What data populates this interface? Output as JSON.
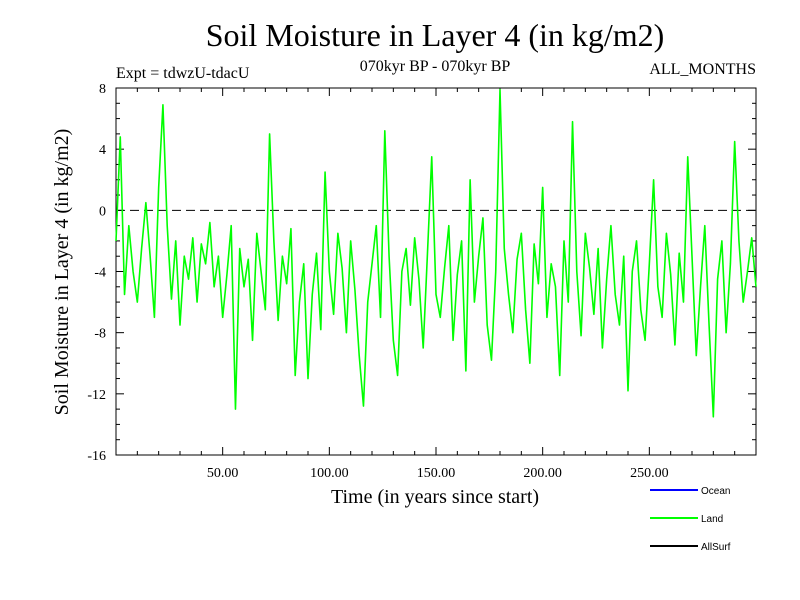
{
  "header": {
    "title": "Soil Moisture in Layer 4 (in kg/m2)",
    "experiment": "Expt = tdwzU-tdacU",
    "period": "070kyr BP - 070kyr BP",
    "months": "ALL_MONTHS"
  },
  "chart_data": {
    "type": "line",
    "xlabel": "Time (in years since start)",
    "ylabel": "Soil Moisture in Layer 4 (in kg/m2)",
    "xlim": [
      0,
      300
    ],
    "ylim": [
      -16,
      8
    ],
    "xticks": [
      50,
      100,
      150,
      200,
      250
    ],
    "xtick_labels": [
      "50.00",
      "100.00",
      "150.00",
      "200.00",
      "250.00"
    ],
    "yticks": [
      -16,
      -12,
      -8,
      -4,
      0,
      4,
      8
    ],
    "ytick_labels": [
      "-16",
      "-12",
      "-8",
      "-4",
      "0",
      "4",
      "8"
    ],
    "zero_line": true,
    "grid": false,
    "legend_position": "bottom-right",
    "series": [
      {
        "name": "Ocean",
        "color": "#0000ff",
        "x": [],
        "y": []
      },
      {
        "name": "Land",
        "color": "#00ff00",
        "x": [
          0,
          2,
          4,
          6,
          8,
          10,
          12,
          14,
          16,
          18,
          20,
          22,
          24,
          26,
          28,
          30,
          32,
          34,
          36,
          38,
          40,
          42,
          44,
          46,
          48,
          50,
          52,
          54,
          56,
          58,
          60,
          62,
          64,
          66,
          68,
          70,
          72,
          74,
          76,
          78,
          80,
          82,
          84,
          86,
          88,
          90,
          92,
          94,
          96,
          98,
          100,
          102,
          104,
          106,
          108,
          110,
          112,
          114,
          116,
          118,
          120,
          122,
          124,
          126,
          128,
          130,
          132,
          134,
          136,
          138,
          140,
          142,
          144,
          146,
          148,
          150,
          152,
          154,
          156,
          158,
          160,
          162,
          164,
          166,
          168,
          170,
          172,
          174,
          176,
          178,
          180,
          182,
          184,
          186,
          188,
          190,
          192,
          194,
          196,
          198,
          200,
          202,
          204,
          206,
          208,
          210,
          212,
          214,
          216,
          218,
          220,
          222,
          224,
          226,
          228,
          230,
          232,
          234,
          236,
          238,
          240,
          242,
          244,
          246,
          248,
          250,
          252,
          254,
          256,
          258,
          260,
          262,
          264,
          266,
          268,
          270,
          272,
          274,
          276,
          278,
          280,
          282,
          284,
          286,
          288,
          290,
          292,
          294,
          296,
          298,
          300
        ],
        "y": [
          -2,
          4.8,
          -5.5,
          -1,
          -4,
          -6,
          -2.5,
          0.5,
          -3,
          -7,
          1.5,
          6.9,
          -1,
          -5.8,
          -2,
          -7.5,
          -3,
          -4.5,
          -1.8,
          -6,
          -2.2,
          -3.5,
          -0.8,
          -5,
          -3,
          -7,
          -4.2,
          -1,
          -13,
          -2.5,
          -5,
          -3.2,
          -8.5,
          -1.5,
          -4,
          -6.5,
          5,
          -2,
          -7.2,
          -3,
          -4.8,
          -1.2,
          -10.8,
          -6,
          -3.5,
          -11,
          -5.5,
          -2.8,
          -7.8,
          2.5,
          -4,
          -6.8,
          -1.5,
          -3.8,
          -8,
          -2,
          -5.2,
          -9.5,
          -12.8,
          -6,
          -3.5,
          -1,
          -7,
          5.2,
          -3,
          -8.5,
          -10.8,
          -4,
          -2.5,
          -6.2,
          -1.8,
          -4.5,
          -9,
          -2.8,
          3.5,
          -5.5,
          -7,
          -3.8,
          -1,
          -8.5,
          -4.2,
          -2,
          -10.5,
          2,
          -6,
          -3,
          -0.5,
          -7.5,
          -9.8,
          -4,
          7.9,
          -2.5,
          -5.5,
          -8,
          -3.2,
          -1.5,
          -6.5,
          -10,
          -2.2,
          -4.8,
          1.5,
          -7,
          -3.5,
          -5,
          -10.8,
          -2,
          -6,
          5.8,
          -4,
          -8.2,
          -1.5,
          -3.8,
          -6.8,
          -2.5,
          -9,
          -4.5,
          -1,
          -5.5,
          -7.5,
          -3,
          -11.8,
          -4,
          -2,
          -6.5,
          -8.5,
          -3.5,
          2,
          -5,
          -7,
          -1.5,
          -4.2,
          -8.8,
          -2.8,
          -6,
          3.5,
          -3,
          -9.5,
          -5,
          -1,
          -7.5,
          -13.5,
          -4.5,
          -2,
          -8,
          -3.5,
          4.5,
          -2,
          -6,
          -4,
          -1.8,
          -5
        ]
      },
      {
        "name": "AllSurf",
        "color": "#000000",
        "x": [],
        "y": []
      }
    ]
  }
}
